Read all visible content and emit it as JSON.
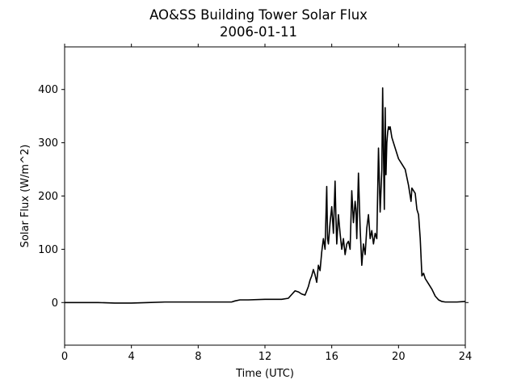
{
  "chart_data": {
    "type": "line",
    "title": "AO&SS Building Tower Solar Flux",
    "subtitle": "2006-01-11",
    "xlabel": "Time (UTC)",
    "ylabel": "Solar Flux (W/m^2)",
    "xlim": [
      0,
      24
    ],
    "ylim": [
      -80,
      480
    ],
    "xticks": [
      0,
      4,
      8,
      12,
      16,
      20,
      24
    ],
    "xtick_labels": [
      "0",
      "4",
      "8",
      "12",
      "16",
      "20",
      "24"
    ],
    "yticks": [
      0,
      100,
      200,
      300,
      400
    ],
    "ytick_labels": [
      "0",
      "100",
      "200",
      "300",
      "400"
    ],
    "grid": false,
    "series": [
      {
        "color": "#000000",
        "x": [
          0,
          1,
          2,
          3,
          4,
          5,
          6,
          7,
          8,
          9,
          10,
          10.2,
          10.5,
          11,
          12,
          13,
          13.4,
          13.6,
          13.8,
          14.0,
          14.2,
          14.4,
          14.5,
          14.6,
          14.7,
          14.8,
          14.9,
          15.0,
          15.1,
          15.2,
          15.3,
          15.4,
          15.5,
          15.6,
          15.7,
          15.75,
          15.8,
          15.85,
          15.9,
          16.0,
          16.1,
          16.2,
          16.25,
          16.3,
          16.4,
          16.5,
          16.6,
          16.7,
          16.8,
          16.9,
          17.0,
          17.1,
          17.2,
          17.3,
          17.4,
          17.45,
          17.5,
          17.6,
          17.7,
          17.8,
          17.9,
          18.0,
          18.1,
          18.2,
          18.3,
          18.4,
          18.5,
          18.6,
          18.7,
          18.8,
          18.9,
          19.0,
          19.05,
          19.1,
          19.15,
          19.2,
          19.25,
          19.3,
          19.35,
          19.4,
          19.45,
          19.5,
          19.6,
          19.7,
          19.8,
          20.0,
          20.2,
          20.4,
          20.6,
          20.7,
          20.75,
          20.8,
          21.0,
          21.1,
          21.2,
          21.3,
          21.4,
          21.5,
          21.6,
          21.8,
          22.0,
          22.2,
          22.4,
          22.6,
          22.8,
          23.0,
          23.5,
          24.0
        ],
        "y": [
          0,
          0,
          0,
          -1,
          -1,
          0,
          1,
          1,
          1,
          1,
          1,
          3,
          5,
          5,
          6,
          6,
          8,
          15,
          22,
          20,
          16,
          14,
          22,
          30,
          42,
          50,
          62,
          52,
          38,
          70,
          60,
          95,
          120,
          100,
          218,
          120,
          110,
          130,
          150,
          180,
          130,
          228,
          160,
          110,
          165,
          130,
          100,
          120,
          90,
          110,
          115,
          100,
          210,
          150,
          190,
          175,
          120,
          243,
          140,
          70,
          110,
          90,
          140,
          165,
          120,
          135,
          110,
          130,
          120,
          290,
          170,
          250,
          403,
          280,
          175,
          366,
          240,
          300,
          320,
          330,
          325,
          330,
          310,
          300,
          290,
          270,
          260,
          250,
          220,
          200,
          190,
          215,
          205,
          175,
          165,
          120,
          50,
          55,
          45,
          35,
          25,
          12,
          5,
          2,
          1,
          1,
          1,
          2
        ]
      }
    ]
  }
}
